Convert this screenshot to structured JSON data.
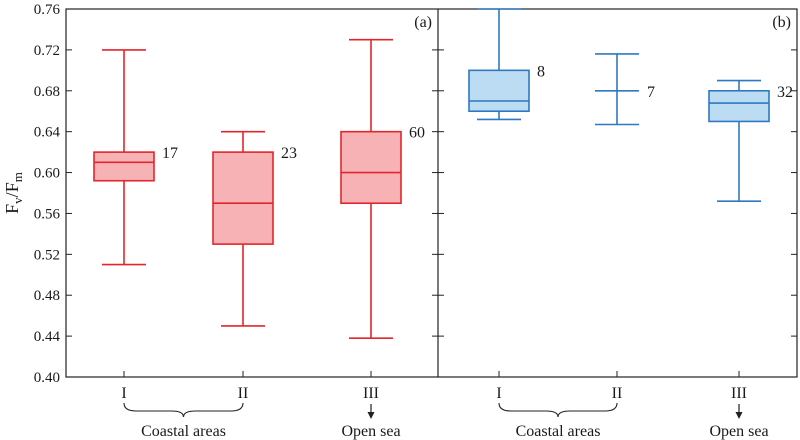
{
  "chart_data": {
    "type": "box",
    "ylabel": "Fv/Fm",
    "ylim": [
      0.4,
      0.76
    ],
    "yticks": [
      "0.40",
      "0.44",
      "0.48",
      "0.52",
      "0.56",
      "0.60",
      "0.64",
      "0.68",
      "0.72",
      "0.76"
    ],
    "categories": [
      "I",
      "II",
      "III"
    ],
    "group_labels": {
      "coastal": "Coastal areas",
      "open": "Open sea"
    },
    "panels": [
      {
        "label": "(a)",
        "color": "#e3262b",
        "fill": "#f7b2b6",
        "boxes": [
          {
            "category": "I",
            "min": 0.51,
            "q1": 0.592,
            "median": 0.61,
            "q3": 0.62,
            "max": 0.72,
            "n": "17"
          },
          {
            "category": "II",
            "min": 0.45,
            "q1": 0.53,
            "median": 0.57,
            "q3": 0.62,
            "max": 0.64,
            "n": "23"
          },
          {
            "category": "III",
            "min": 0.438,
            "q1": 0.57,
            "median": 0.6,
            "q3": 0.64,
            "max": 0.73,
            "n": "60"
          }
        ]
      },
      {
        "label": "(b)",
        "color": "#2f79c0",
        "fill": "#bcdcf3",
        "boxes": [
          {
            "category": "I",
            "min": 0.652,
            "q1": 0.66,
            "median": 0.67,
            "q3": 0.7,
            "max": 0.76,
            "n": "8"
          },
          {
            "category": "II",
            "min": 0.647,
            "q1": 0.68,
            "median": 0.68,
            "q3": 0.68,
            "max": 0.716,
            "n": "7"
          },
          {
            "category": "III",
            "min": 0.572,
            "q1": 0.65,
            "median": 0.668,
            "q3": 0.68,
            "max": 0.69,
            "n": "32"
          }
        ]
      }
    ]
  }
}
